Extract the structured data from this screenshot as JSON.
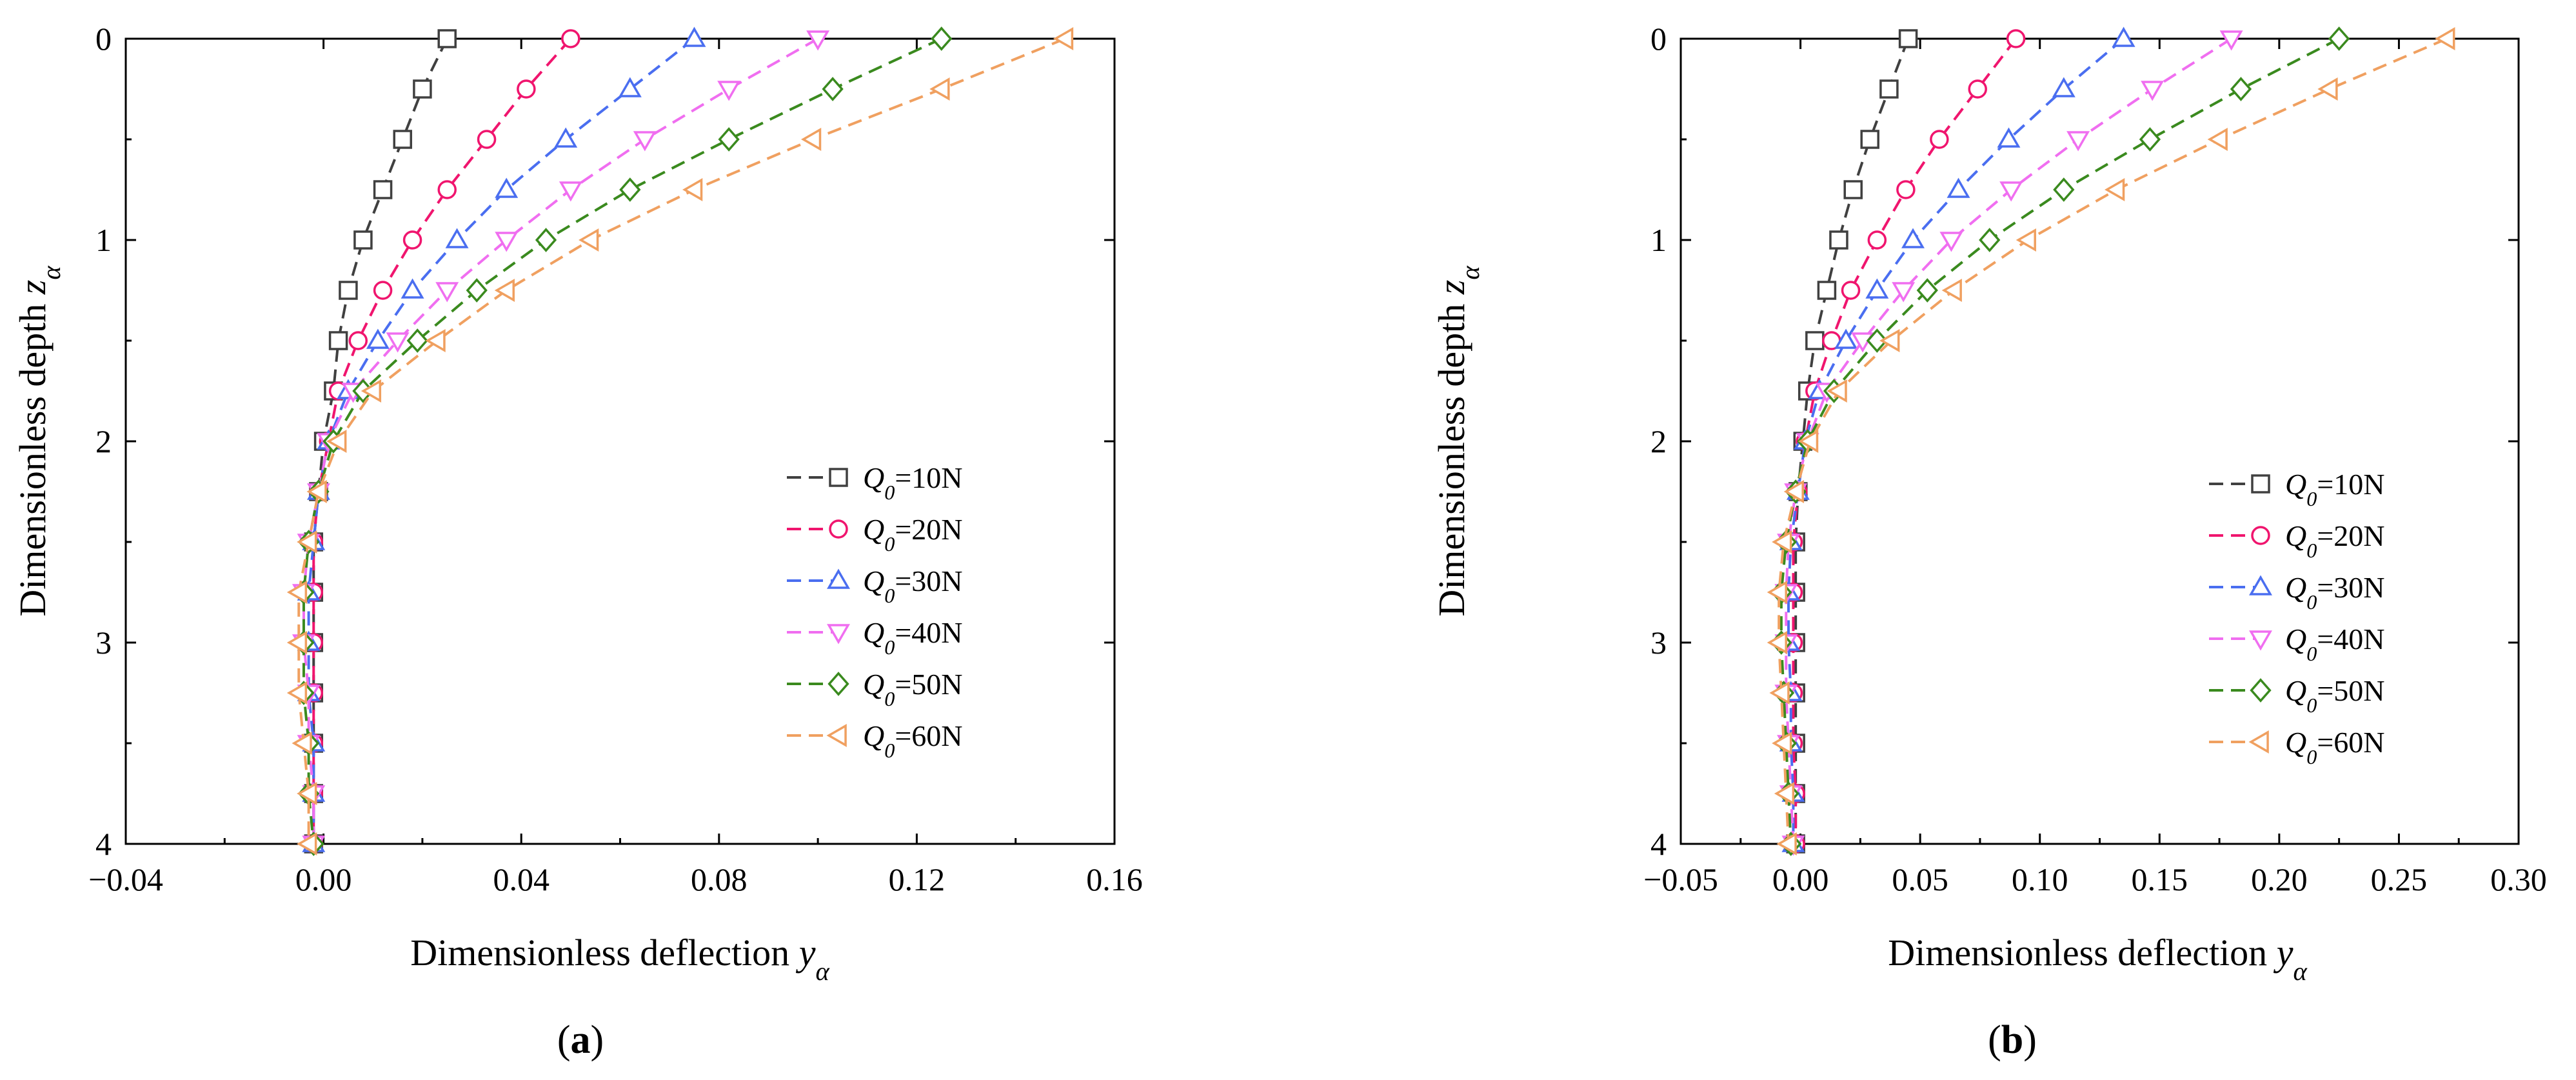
{
  "chart_data": [
    {
      "type": "line",
      "panel_label": "a",
      "xlabel": "Dimensionless deflection",
      "xlabel_var": "y",
      "xlabel_sub": "α",
      "ylabel": "Dimensionless depth",
      "ylabel_var": "z",
      "ylabel_sub": "α",
      "xlim": [
        -0.04,
        0.16
      ],
      "ylim": [
        0,
        4
      ],
      "y_inverted": true,
      "x_ticks": [
        -0.04,
        0.0,
        0.04,
        0.08,
        0.12,
        0.16
      ],
      "x_tick_labels": [
        "−0.04",
        "0.00",
        "0.04",
        "0.08",
        "0.12",
        "0.16"
      ],
      "y_ticks": [
        0,
        1,
        2,
        3,
        4
      ],
      "y_tick_labels": [
        "0",
        "1",
        "2",
        "3",
        "4"
      ],
      "legend_position": "middle-right",
      "z": [
        0,
        0.25,
        0.5,
        0.75,
        1.0,
        1.25,
        1.5,
        1.75,
        2.0,
        2.25,
        2.5,
        2.75,
        3.0,
        3.25,
        3.5,
        3.75,
        4.0
      ],
      "series": [
        {
          "name_var": "Q",
          "name_sub": "0",
          "name_value": "=10N",
          "color": "#404040",
          "marker": "square",
          "values": [
            0.025,
            0.02,
            0.016,
            0.012,
            0.008,
            0.005,
            0.003,
            0.002,
            0.0,
            -0.001,
            -0.002,
            -0.002,
            -0.002,
            -0.002,
            -0.002,
            -0.002,
            -0.002
          ]
        },
        {
          "name_var": "Q",
          "name_sub": "0",
          "name_value": "=20N",
          "color": "#f0156e",
          "marker": "circle",
          "values": [
            0.05,
            0.041,
            0.033,
            0.025,
            0.018,
            0.012,
            0.007,
            0.003,
            0.001,
            -0.001,
            -0.002,
            -0.002,
            -0.002,
            -0.002,
            -0.002,
            -0.002,
            -0.002
          ]
        },
        {
          "name_var": "Q",
          "name_sub": "0",
          "name_value": "=30N",
          "color": "#4a6ef0",
          "marker": "triangle-up",
          "values": [
            0.075,
            0.062,
            0.049,
            0.037,
            0.027,
            0.018,
            0.011,
            0.005,
            0.001,
            -0.001,
            -0.002,
            -0.003,
            -0.003,
            -0.003,
            -0.002,
            -0.002,
            -0.002
          ]
        },
        {
          "name_var": "Q",
          "name_sub": "0",
          "name_value": "=40N",
          "color": "#f06ef0",
          "marker": "triangle-down",
          "values": [
            0.1,
            0.082,
            0.065,
            0.05,
            0.037,
            0.025,
            0.015,
            0.006,
            0.001,
            -0.001,
            -0.003,
            -0.004,
            -0.004,
            -0.003,
            -0.003,
            -0.002,
            -0.002
          ]
        },
        {
          "name_var": "Q",
          "name_sub": "0",
          "name_value": "=50N",
          "color": "#3a8a1e",
          "marker": "diamond",
          "values": [
            0.125,
            0.103,
            0.082,
            0.062,
            0.045,
            0.031,
            0.019,
            0.008,
            0.002,
            -0.001,
            -0.003,
            -0.004,
            -0.004,
            -0.004,
            -0.003,
            -0.003,
            -0.002
          ]
        },
        {
          "name_var": "Q",
          "name_sub": "0",
          "name_value": "=60N",
          "color": "#f0a060",
          "marker": "triangle-left",
          "values": [
            0.15,
            0.125,
            0.099,
            0.075,
            0.054,
            0.037,
            0.023,
            0.01,
            0.003,
            -0.001,
            -0.003,
            -0.005,
            -0.005,
            -0.005,
            -0.004,
            -0.003,
            -0.003
          ]
        }
      ]
    },
    {
      "type": "line",
      "panel_label": "b",
      "xlabel": "Dimensionless deflection",
      "xlabel_var": "y",
      "xlabel_sub": "α",
      "ylabel": "Dimensionless depth",
      "ylabel_var": "z",
      "ylabel_sub": "α",
      "xlim": [
        -0.05,
        0.3
      ],
      "ylim": [
        0,
        4
      ],
      "y_inverted": true,
      "x_ticks": [
        -0.05,
        0.0,
        0.05,
        0.1,
        0.15,
        0.2,
        0.25,
        0.3
      ],
      "x_tick_labels": [
        "−0.05",
        "0.00",
        "0.05",
        "0.10",
        "0.15",
        "0.20",
        "0.25",
        "0.30"
      ],
      "y_ticks": [
        0,
        1,
        2,
        3,
        4
      ],
      "y_tick_labels": [
        "0",
        "1",
        "2",
        "3",
        "4"
      ],
      "legend_position": "middle-right",
      "z": [
        0,
        0.25,
        0.5,
        0.75,
        1.0,
        1.25,
        1.5,
        1.75,
        2.0,
        2.25,
        2.5,
        2.75,
        3.0,
        3.25,
        3.5,
        3.75,
        4.0
      ],
      "series": [
        {
          "name_var": "Q",
          "name_sub": "0",
          "name_value": "=10N",
          "color": "#404040",
          "marker": "square",
          "values": [
            0.045,
            0.037,
            0.029,
            0.022,
            0.016,
            0.011,
            0.006,
            0.003,
            0.001,
            -0.001,
            -0.002,
            -0.002,
            -0.002,
            -0.002,
            -0.002,
            -0.002,
            -0.002
          ]
        },
        {
          "name_var": "Q",
          "name_sub": "0",
          "name_value": "=20N",
          "color": "#f0156e",
          "marker": "circle",
          "values": [
            0.09,
            0.074,
            0.058,
            0.044,
            0.032,
            0.021,
            0.013,
            0.006,
            0.002,
            -0.001,
            -0.003,
            -0.003,
            -0.003,
            -0.003,
            -0.003,
            -0.002,
            -0.002
          ]
        },
        {
          "name_var": "Q",
          "name_sub": "0",
          "name_value": "=30N",
          "color": "#4a6ef0",
          "marker": "triangle-up",
          "values": [
            0.135,
            0.11,
            0.087,
            0.066,
            0.047,
            0.032,
            0.019,
            0.008,
            0.002,
            -0.001,
            -0.004,
            -0.005,
            -0.005,
            -0.004,
            -0.004,
            -0.003,
            -0.003
          ]
        },
        {
          "name_var": "Q",
          "name_sub": "0",
          "name_value": "=40N",
          "color": "#f06ef0",
          "marker": "triangle-down",
          "values": [
            0.18,
            0.147,
            0.116,
            0.088,
            0.063,
            0.043,
            0.026,
            0.011,
            0.003,
            -0.002,
            -0.005,
            -0.006,
            -0.006,
            -0.006,
            -0.005,
            -0.004,
            -0.003
          ]
        },
        {
          "name_var": "Q",
          "name_sub": "0",
          "name_value": "=50N",
          "color": "#3a8a1e",
          "marker": "diamond",
          "values": [
            0.225,
            0.184,
            0.146,
            0.11,
            0.079,
            0.053,
            0.032,
            0.014,
            0.003,
            -0.002,
            -0.006,
            -0.008,
            -0.008,
            -0.007,
            -0.006,
            -0.005,
            -0.004
          ]
        },
        {
          "name_var": "Q",
          "name_sub": "0",
          "name_value": "=60N",
          "color": "#f0a060",
          "marker": "triangle-left",
          "values": [
            0.27,
            0.221,
            0.175,
            0.132,
            0.095,
            0.064,
            0.038,
            0.016,
            0.004,
            -0.002,
            -0.007,
            -0.009,
            -0.009,
            -0.008,
            -0.007,
            -0.006,
            -0.005
          ]
        }
      ]
    }
  ]
}
